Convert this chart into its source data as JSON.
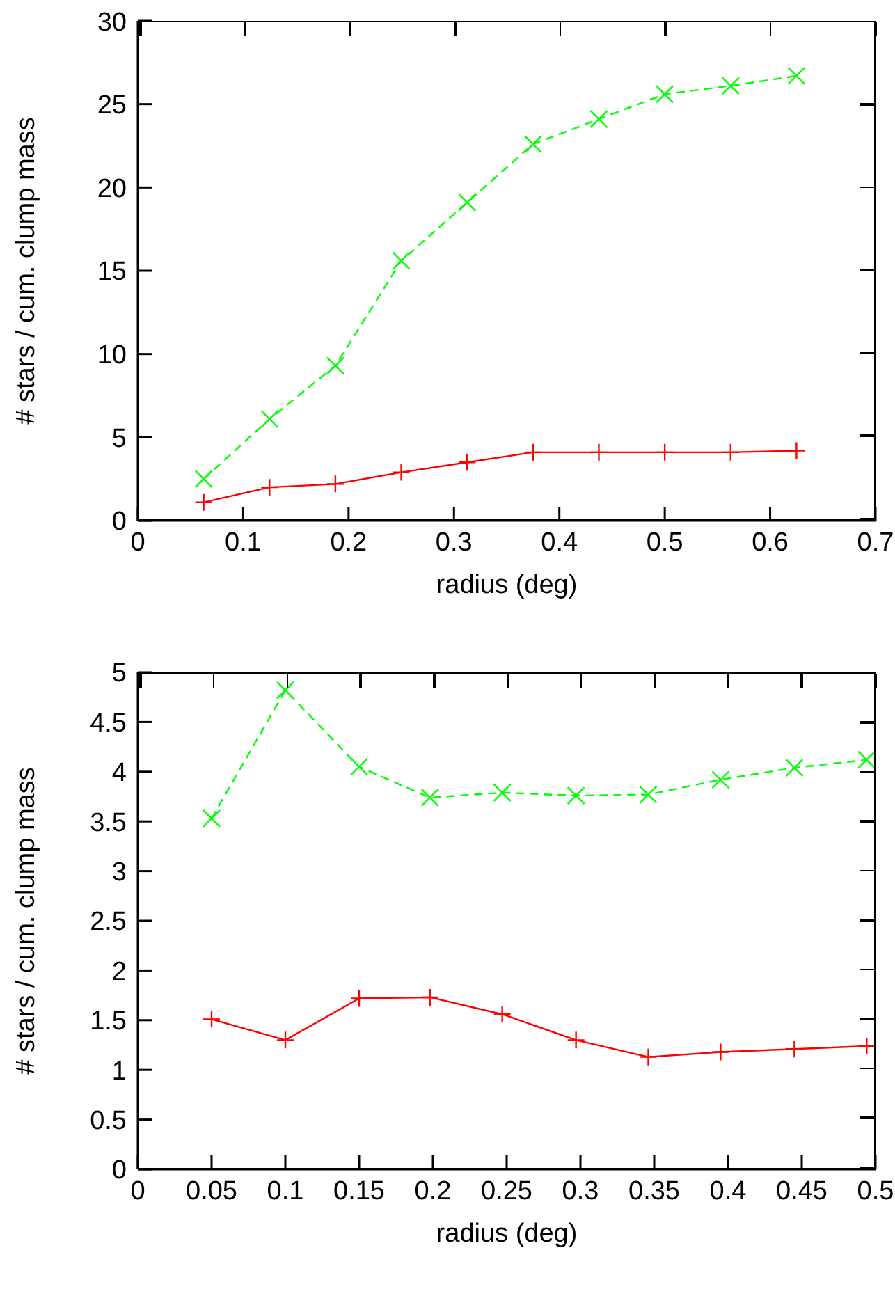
{
  "chart_data": [
    {
      "type": "line",
      "xlabel": "radius (deg)",
      "ylabel": "# stars / cum. clump mass",
      "x": [
        0.0625,
        0.125,
        0.1875,
        0.25,
        0.3125,
        0.375,
        0.4375,
        0.5,
        0.5625,
        0.625
      ],
      "series": [
        {
          "color": "#ff0000",
          "values": [
            1.1,
            2.0,
            2.2,
            2.9,
            3.5,
            4.1,
            4.1,
            4.1,
            4.1,
            4.2
          ],
          "marker": "plus",
          "line_style": "solid"
        },
        {
          "color": "#00ff00",
          "values": [
            2.5,
            6.1,
            9.3,
            15.6,
            19.1,
            22.6,
            24.1,
            25.6,
            26.1,
            26.7
          ],
          "marker": "cross",
          "line_style": "dashed"
        }
      ],
      "xlim": [
        0,
        0.7
      ],
      "xticks": [
        0,
        0.1,
        0.2,
        0.3,
        0.4,
        0.5,
        0.6,
        0.7
      ],
      "ylim": [
        0,
        30
      ],
      "yticks": [
        0,
        5,
        10,
        15,
        20,
        25,
        30
      ],
      "grid": false,
      "legend": false
    },
    {
      "type": "line",
      "xlabel": "radius (deg)",
      "ylabel": "# stars / cum. clump mass",
      "x": [
        0.05,
        0.1,
        0.15,
        0.198,
        0.247,
        0.297,
        0.346,
        0.395,
        0.445,
        0.494
      ],
      "series": [
        {
          "color": "#ff0000",
          "values": [
            1.51,
            1.3,
            1.72,
            1.73,
            1.56,
            1.3,
            1.13,
            1.18,
            1.21,
            1.24
          ],
          "marker": "plus",
          "line_style": "solid"
        },
        {
          "color": "#00ff00",
          "values": [
            3.53,
            4.82,
            4.05,
            3.74,
            3.79,
            3.76,
            3.77,
            3.92,
            4.04,
            4.12
          ],
          "marker": "cross",
          "line_style": "dashed"
        }
      ],
      "xlim": [
        0,
        0.5
      ],
      "xticks": [
        0,
        0.05,
        0.1,
        0.15,
        0.2,
        0.25,
        0.3,
        0.35,
        0.4,
        0.45,
        0.5
      ],
      "ylim": [
        0,
        5
      ],
      "yticks": [
        0,
        0.5,
        1,
        1.5,
        2,
        2.5,
        3,
        3.5,
        4,
        4.5,
        5
      ],
      "grid": false,
      "legend": false
    }
  ]
}
